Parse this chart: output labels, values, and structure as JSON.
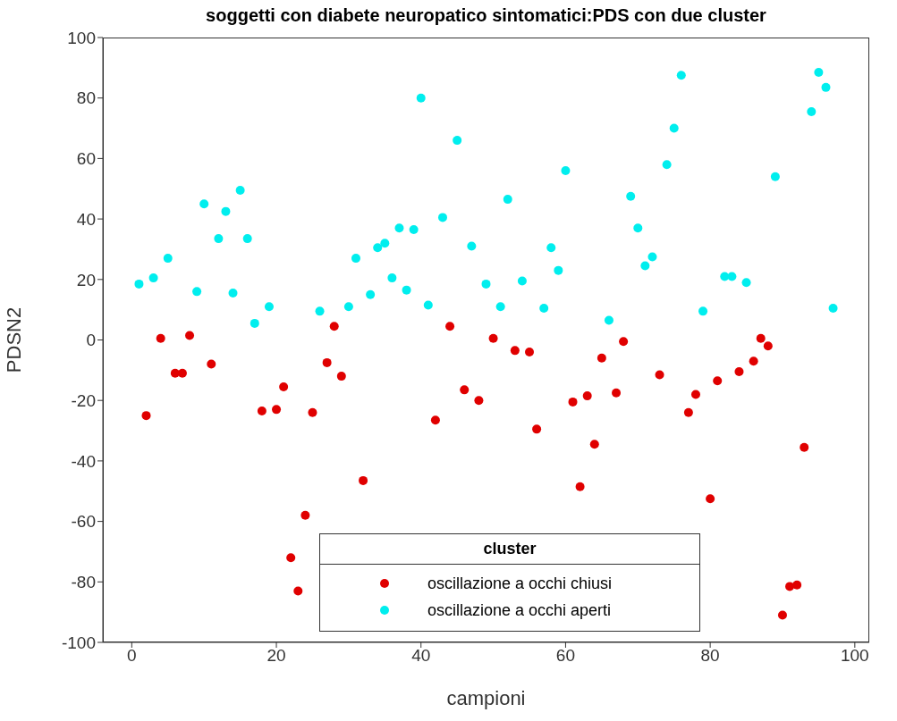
{
  "chart_data": {
    "type": "scatter",
    "title": "soggetti con diabete neuropatico sintomatici:PDS con due cluster",
    "xlabel": "campioni",
    "ylabel": "PDSN2",
    "legend_title": "cluster",
    "legend": "bottom",
    "marker": "circle",
    "grid": false,
    "xlim": [
      -4,
      102
    ],
    "xticks": [
      0,
      20,
      40,
      60,
      80,
      100
    ],
    "ylim": [
      -100,
      100
    ],
    "yticks": [
      -100,
      -80,
      -60,
      -40,
      -20,
      0,
      20,
      40,
      60,
      80,
      100
    ],
    "series": [
      {
        "name": "oscillazione a occhi chiusi",
        "color": "#e00000",
        "x": [
          2,
          4,
          6,
          7,
          8,
          11,
          18,
          20,
          21,
          22,
          23,
          24,
          25,
          27,
          28,
          29,
          32,
          42,
          44,
          46,
          48,
          50,
          53,
          55,
          56,
          61,
          62,
          63,
          64,
          65,
          67,
          68,
          73,
          77,
          78,
          80,
          81,
          84,
          86,
          87,
          88,
          90,
          91,
          92,
          93
        ],
        "values": [
          -25,
          0.5,
          -11,
          -11,
          1.5,
          -8,
          -23.5,
          -23,
          -15.5,
          -72,
          -83,
          -58,
          -24,
          -7.5,
          4.5,
          -12,
          -46.5,
          -26.5,
          4.5,
          -16.5,
          -20,
          0.5,
          -3.5,
          -4,
          -29.5,
          -20.5,
          -48.5,
          -18.5,
          -34.5,
          -6,
          -17.5,
          -0.5,
          -11.5,
          -24,
          -18,
          -52.5,
          -13.5,
          -10.5,
          -7,
          0.5,
          -2,
          -91,
          -81.5,
          -81,
          -35.5
        ]
      },
      {
        "name": "oscillazione a occhi aperti",
        "color": "#00eeee",
        "x": [
          1,
          3,
          5,
          9,
          10,
          12,
          13,
          14,
          15,
          16,
          17,
          19,
          26,
          30,
          31,
          33,
          34,
          35,
          36,
          37,
          38,
          39,
          40,
          41,
          43,
          45,
          47,
          49,
          51,
          52,
          54,
          57,
          58,
          59,
          60,
          66,
          69,
          70,
          71,
          72,
          74,
          75,
          76,
          79,
          82,
          83,
          85,
          89,
          94,
          95,
          96,
          97
        ],
        "values": [
          18.5,
          20.5,
          27,
          16,
          45,
          33.5,
          42.5,
          15.5,
          49.5,
          33.5,
          5.5,
          11,
          9.5,
          11,
          27,
          15,
          30.5,
          32,
          20.5,
          37,
          16.5,
          36.5,
          80,
          11.5,
          40.5,
          66,
          31,
          18.5,
          11,
          46.5,
          19.5,
          10.5,
          30.5,
          23,
          56,
          6.5,
          47.5,
          37,
          24.5,
          27.5,
          58,
          70,
          87.5,
          9.5,
          21,
          21,
          19,
          54,
          75.5,
          88.5,
          83.5,
          10.5
        ]
      }
    ]
  }
}
